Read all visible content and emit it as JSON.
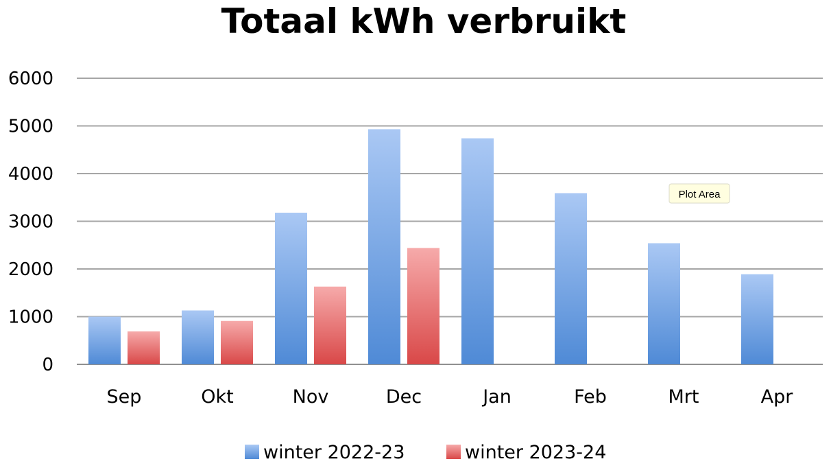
{
  "chart_data": {
    "type": "bar",
    "title": "Totaal kWh verbruikt",
    "categories": [
      "Sep",
      "Okt",
      "Nov",
      "Dec",
      "Jan",
      "Feb",
      "Mrt",
      "Apr"
    ],
    "series": [
      {
        "name": "winter 2022-23",
        "values": [
          1000,
          1130,
          3180,
          4930,
          4740,
          3590,
          2540,
          1890
        ],
        "color": "#5b8fd6"
      },
      {
        "name": "winter 2023-24",
        "values": [
          690,
          910,
          1630,
          2440,
          null,
          null,
          null,
          null
        ],
        "color": "#dd5a5a"
      }
    ],
    "ylim": [
      0,
      6000
    ],
    "yticks": [
      0,
      1000,
      2000,
      3000,
      4000,
      5000,
      6000
    ],
    "grid": true,
    "legend_position": "bottom",
    "xlabel": "",
    "ylabel": ""
  },
  "tooltip": {
    "label": "Plot Area"
  }
}
